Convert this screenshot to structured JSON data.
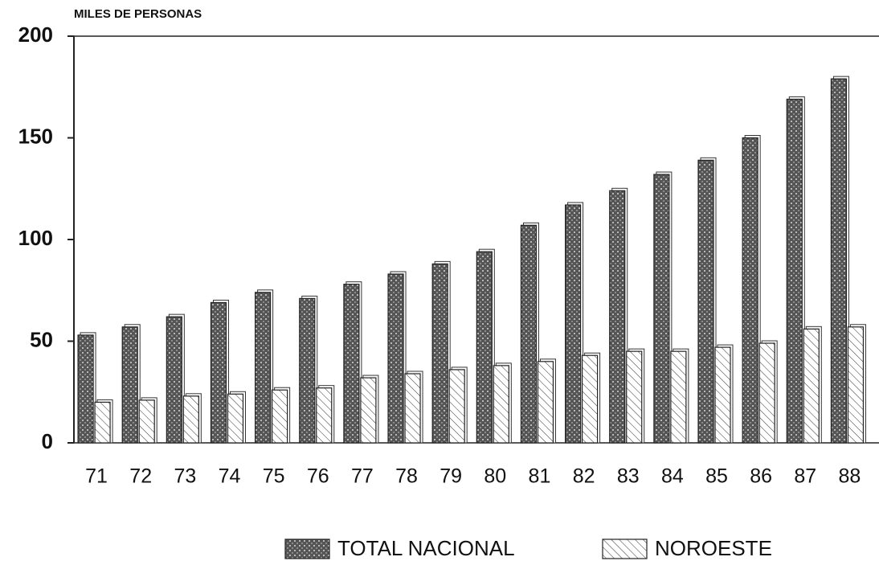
{
  "chart_data": {
    "type": "bar",
    "ylabel": "MILES DE PERSONAS",
    "categories": [
      "71",
      "72",
      "73",
      "74",
      "75",
      "76",
      "77",
      "78",
      "79",
      "80",
      "81",
      "82",
      "83",
      "84",
      "85",
      "86",
      "87",
      "88"
    ],
    "series": [
      {
        "name": "TOTAL NACIONAL",
        "color": "#555555",
        "values": [
          53,
          57,
          62,
          69,
          74,
          71,
          78,
          83,
          88,
          94,
          107,
          117,
          124,
          132,
          139,
          150,
          169,
          179
        ]
      },
      {
        "name": "NOROESTE",
        "color": "#ffffff",
        "values": [
          20,
          21,
          23,
          24,
          26,
          27,
          32,
          34,
          36,
          38,
          40,
          43,
          45,
          45,
          47,
          49,
          56,
          57
        ]
      }
    ],
    "ylim": [
      0,
      200
    ],
    "yticks": [
      0,
      50,
      100,
      150,
      200
    ],
    "grid": false
  }
}
